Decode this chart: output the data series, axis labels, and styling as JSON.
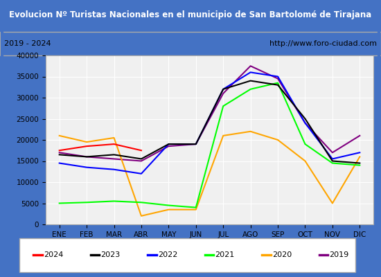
{
  "title": "Evolucion Nº Turistas Nacionales en el municipio de San Bartolomé de Tirajana",
  "subtitle_left": "2019 - 2024",
  "subtitle_right": "http://www.foro-ciudad.com",
  "x_labels": [
    "ENE",
    "FEB",
    "MAR",
    "ABR",
    "MAY",
    "JUN",
    "JUL",
    "AGO",
    "SEP",
    "OCT",
    "NOV",
    "DIC"
  ],
  "ylim": [
    0,
    40000
  ],
  "yticks": [
    0,
    5000,
    10000,
    15000,
    20000,
    25000,
    30000,
    35000,
    40000
  ],
  "series": {
    "2024": {
      "color": "red",
      "data": [
        17500,
        18500,
        19000,
        17500,
        null,
        null,
        null,
        null,
        null,
        null,
        null,
        null
      ]
    },
    "2023": {
      "color": "black",
      "data": [
        16500,
        16000,
        16500,
        15500,
        19000,
        19000,
        32000,
        34000,
        33000,
        25000,
        15000,
        14500
      ]
    },
    "2022": {
      "color": "blue",
      "data": [
        14500,
        13500,
        13000,
        12000,
        19000,
        19000,
        32000,
        36000,
        35000,
        24000,
        15500,
        17000
      ]
    },
    "2021": {
      "color": "lime",
      "data": [
        5000,
        5200,
        5500,
        5200,
        4500,
        4000,
        28000,
        32000,
        33500,
        19000,
        14500,
        14000
      ]
    },
    "2020": {
      "color": "orange",
      "data": [
        21000,
        19500,
        20500,
        2000,
        3500,
        3500,
        21000,
        22000,
        20000,
        15000,
        5000,
        16000
      ]
    },
    "2019": {
      "color": "purple",
      "data": [
        17000,
        16000,
        15500,
        15000,
        18500,
        19000,
        31000,
        37500,
        34500,
        24000,
        17000,
        21000
      ]
    }
  },
  "title_bg": "#4472c4",
  "title_color": "white",
  "subtitle_bg": "white",
  "plot_bg": "#f0f0f0",
  "border_color": "#4472c4"
}
